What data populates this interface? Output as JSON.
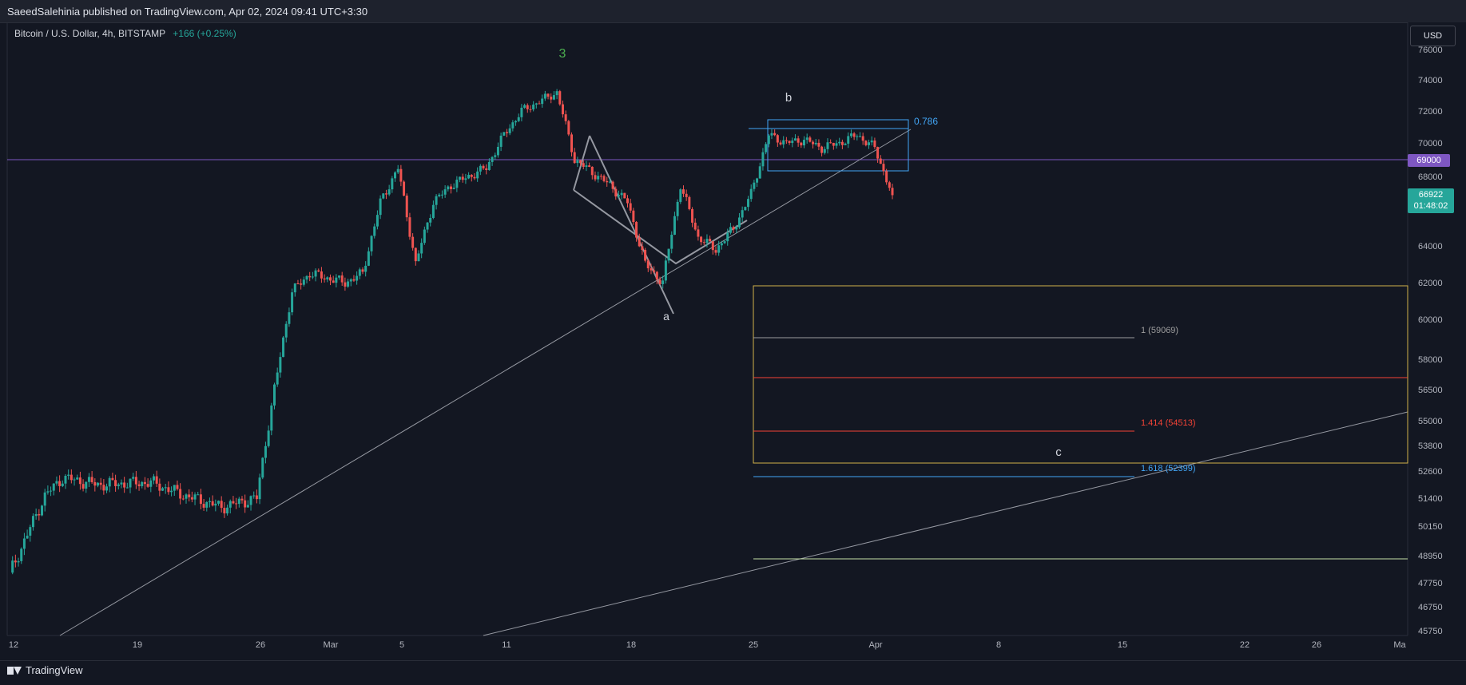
{
  "header": {
    "publisher_text": "SaeedSalehinia published on TradingView.com, Apr 02, 2024 09:41 UTC+3:30"
  },
  "legend": {
    "symbol": "Bitcoin / U.S. Dollar, 4h, BITSTAMP",
    "change": "+166 (+0.25%)"
  },
  "currency_button": "USD",
  "price_axis_labels": [
    "76000",
    "74000",
    "72000",
    "70000",
    "68000",
    "64000",
    "62000",
    "60000",
    "58000",
    "56500",
    "55000",
    "53800",
    "52600",
    "51400",
    "50150",
    "48950",
    "47750",
    "46750",
    "45750"
  ],
  "time_axis_labels": [
    "12",
    "19",
    "26",
    "Mar",
    "5",
    "11",
    "18",
    "25",
    "Apr",
    "8",
    "15",
    "22",
    "26",
    "Ma"
  ],
  "tags": {
    "level": "69000",
    "last_price": "66922",
    "countdown": "01:48:02"
  },
  "annotations": {
    "wave_3": "3",
    "wave_a": "a",
    "wave_b": "b",
    "wave_c": "c",
    "fib_0786": "0.786",
    "fib_1": "1 (59069)",
    "fib_1414": "1.414 (54513)",
    "fib_1618": "1.618 (52399)"
  },
  "footer": {
    "brand": "TradingView"
  },
  "colors": {
    "bg": "#131722",
    "up": "#26a69a",
    "down": "#ef5350",
    "level_line": "#7e57c2",
    "fib_blue": "#42a5f5",
    "fib_red": "#f44336",
    "fib_yellow": "#d1b04a",
    "fib_gray": "#9e9e9e",
    "fib_green": "#c5e1a5",
    "wave3": "#4caf50"
  },
  "chart_data": {
    "type": "candlestick",
    "title": "Bitcoin / U.S. Dollar, 4h, BITSTAMP",
    "x_range": [
      "Feb 12",
      "May"
    ],
    "ylim": [
      45750,
      76000
    ],
    "horizontal_level": 69000,
    "last_price": 66922,
    "close_path": [
      [
        "Feb 12",
        48200
      ],
      [
        "Feb 13",
        49800
      ],
      [
        "Feb 14",
        51500
      ],
      [
        "Feb 15",
        52300
      ],
      [
        "Feb 17",
        52000
      ],
      [
        "Feb 20",
        52100
      ],
      [
        "Feb 22",
        51500
      ],
      [
        "Feb 24",
        51000
      ],
      [
        "Feb 26",
        51400
      ],
      [
        "Feb 27",
        56500
      ],
      [
        "Feb 28",
        61500
      ],
      [
        "Feb 29",
        62500
      ],
      [
        "Mar 2",
        62000
      ],
      [
        "Mar 3",
        62500
      ],
      [
        "Mar 4",
        66500
      ],
      [
        "Mar 5",
        68500
      ],
      [
        "Mar 6",
        63000
      ],
      [
        "Mar 7",
        66500
      ],
      [
        "Mar 8",
        67500
      ],
      [
        "Mar 10",
        68500
      ],
      [
        "Mar 11",
        70500
      ],
      [
        "Mar 12",
        72000
      ],
      [
        "Mar 14",
        73200
      ],
      [
        "Mar 15",
        69000
      ],
      [
        "Mar 17",
        67500
      ],
      [
        "Mar 18",
        66500
      ],
      [
        "Mar 19",
        63000
      ],
      [
        "Mar 20",
        62000
      ],
      [
        "Mar 21",
        67500
      ],
      [
        "Mar 22",
        64500
      ],
      [
        "Mar 23",
        63800
      ],
      [
        "Mar 24",
        65000
      ],
      [
        "Mar 25",
        67000
      ],
      [
        "Mar 26",
        70500
      ],
      [
        "Mar 27",
        70000
      ],
      [
        "Mar 28",
        70200
      ],
      [
        "Mar 29",
        69700
      ],
      [
        "Mar 30",
        70000
      ],
      [
        "Mar 31",
        70500
      ],
      [
        "Apr 1",
        69700
      ],
      [
        "Apr 2",
        66922
      ]
    ]
  }
}
